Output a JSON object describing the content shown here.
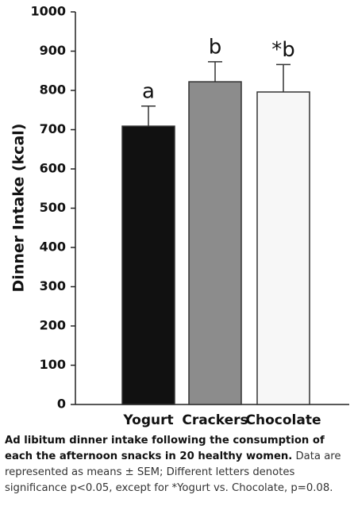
{
  "chart_data": {
    "type": "bar",
    "y_label": "Dinner Intake (kcal)",
    "categories": [
      "Yogurt",
      "Crackers",
      "Chocolate"
    ],
    "values": [
      709,
      822,
      796
    ],
    "errors": [
      51,
      51,
      70
    ],
    "colors": [
      "#111111",
      "#8c8c8c",
      "#f7f7f7"
    ],
    "annotations": [
      "a",
      "b",
      "*b"
    ],
    "ylim": [
      0,
      1000
    ],
    "yticks": [
      0,
      100,
      200,
      300,
      400,
      500,
      600,
      700,
      800,
      900,
      1000
    ]
  },
  "caption": {
    "bold": "Ad libitum dinner intake following the consumption of each the afternoon snacks in 20 healthy women.",
    "text": "Data are represented as means ± SEM; Different letters denotes significance p<0.05, except for *Yogurt vs. Chocolate, p=0.08."
  }
}
